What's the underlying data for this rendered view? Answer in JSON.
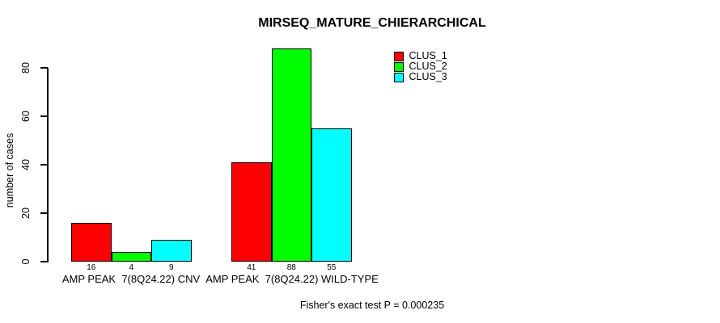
{
  "chart_data": {
    "type": "bar",
    "title": "MIRSEQ_MATURE_CHIERARCHICAL",
    "xlabel": "",
    "ylabel": "number of cases",
    "ylim": [
      0,
      88
    ],
    "yticks": [
      0,
      20,
      40,
      60,
      80
    ],
    "grid": false,
    "legend_position": "top-right",
    "categories": [
      "AMP PEAK  7(8Q24.22) CNV",
      "AMP PEAK  7(8Q24.22) WILD-TYPE"
    ],
    "series": [
      {
        "name": "CLUS_1",
        "color": "#ff0000",
        "values": [
          16,
          41
        ]
      },
      {
        "name": "CLUS_2",
        "color": "#00ff00",
        "values": [
          4,
          88
        ]
      },
      {
        "name": "CLUS_3",
        "color": "#00ffff",
        "values": [
          9,
          55
        ]
      }
    ],
    "bar_value_labels": [
      [
        16,
        4,
        9
      ],
      [
        41,
        88,
        55
      ]
    ],
    "annotation": "Fisher's exact test P = 0.000235"
  }
}
